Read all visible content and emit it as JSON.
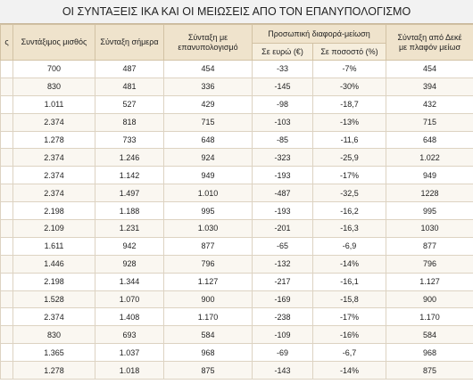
{
  "title": "ΟΙ ΣΥΝΤΑΞΕΙΣ ΙΚΑ ΚΑΙ ΟΙ ΜΕΙΩΣΕΙΣ ΑΠΟ ΤΟΝ ΕΠΑΝΥΠΟΛΟΓΙΣΜΟ",
  "table": {
    "header": {
      "first": "ς",
      "salary": "Συντάξιμος μισθός",
      "pension_today": "Σύνταξη σήμερα",
      "pension_recalc": "Σύνταξη με επανυπολογισμό",
      "difference": "Προσωπική διαφορά-μείωση",
      "diff_euro": "Σε ευρώ (€)",
      "diff_pct": "Σε ποσοστό (%)",
      "december": "Σύνταξη από Δεκέ",
      "december_2": "με πλαφόν μείωσ"
    },
    "rows": [
      [
        "700",
        "487",
        "454",
        "-33",
        "-7%",
        "454"
      ],
      [
        "830",
        "481",
        "336",
        "-145",
        "-30%",
        "394"
      ],
      [
        "1.011",
        "527",
        "429",
        "-98",
        "-18,7",
        "432"
      ],
      [
        "2.374",
        "818",
        "715",
        "-103",
        "-13%",
        "715"
      ],
      [
        "1.278",
        "733",
        "648",
        "-85",
        "-11,6",
        "648"
      ],
      [
        "2.374",
        "1.246",
        "924",
        "-323",
        "-25,9",
        "1.022"
      ],
      [
        "2.374",
        "1.142",
        "949",
        "-193",
        "-17%",
        "949"
      ],
      [
        "2.374",
        "1.497",
        "1.010",
        "-487",
        "-32,5",
        "1228"
      ],
      [
        "2.198",
        "1.188",
        "995",
        "-193",
        "-16,2",
        "995"
      ],
      [
        "2.109",
        "1.231",
        "1.030",
        "-201",
        "-16,3",
        "1030"
      ],
      [
        "1.611",
        "942",
        "877",
        "-65",
        "-6,9",
        "877"
      ],
      [
        "1.446",
        "928",
        "796",
        "-132",
        "-14%",
        "796"
      ],
      [
        "2.198",
        "1.344",
        "1.127",
        "-217",
        "-16,1",
        "1.127"
      ],
      [
        "1.528",
        "1.070",
        "900",
        "-169",
        "-15,8",
        "900"
      ],
      [
        "2.374",
        "1.408",
        "1.170",
        "-238",
        "-17%",
        "1.170"
      ],
      [
        "830",
        "693",
        "584",
        "-109",
        "-16%",
        "584"
      ],
      [
        "1.365",
        "1.037",
        "968",
        "-69",
        "-6,7",
        "968"
      ],
      [
        "1.278",
        "1.018",
        "875",
        "-143",
        "-14%",
        "875"
      ]
    ]
  }
}
